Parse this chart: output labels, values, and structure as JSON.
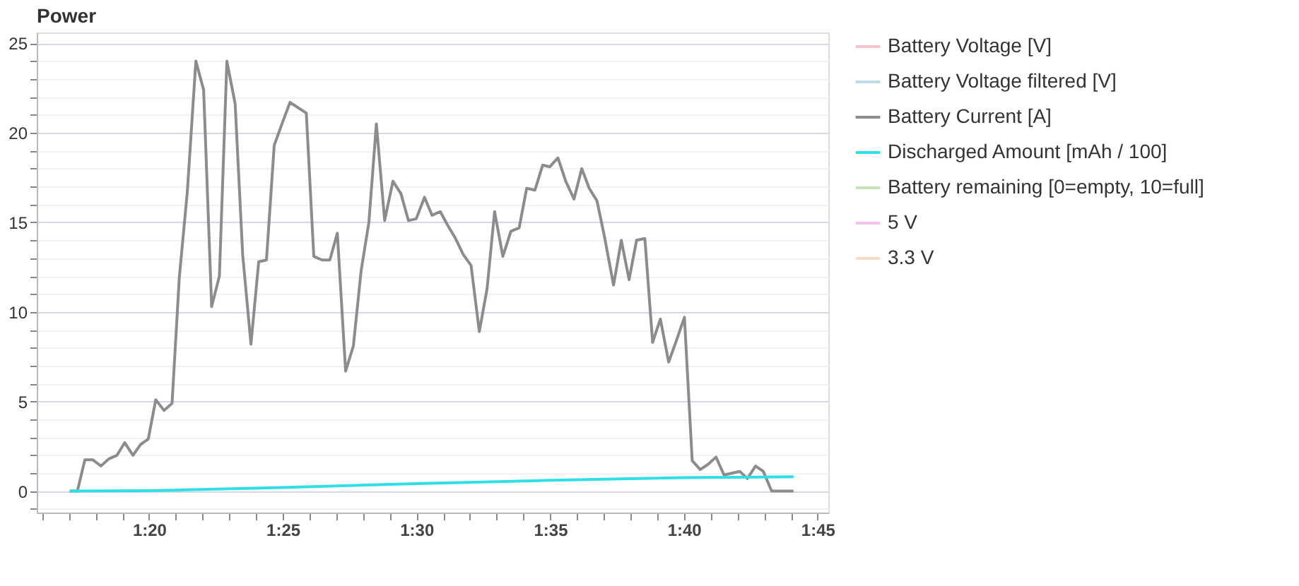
{
  "chart_data": {
    "type": "line",
    "title": "Power",
    "xlim": [
      75.8,
      105.4
    ],
    "xticks": [
      {
        "value": 76,
        "label": null
      },
      {
        "value": 77,
        "label": null
      },
      {
        "value": 78,
        "label": null
      },
      {
        "value": 79,
        "label": null
      },
      {
        "value": 80,
        "label": "1:20"
      },
      {
        "value": 81,
        "label": null
      },
      {
        "value": 82,
        "label": null
      },
      {
        "value": 83,
        "label": null
      },
      {
        "value": 84,
        "label": null
      },
      {
        "value": 85,
        "label": "1:25"
      },
      {
        "value": 86,
        "label": null
      },
      {
        "value": 87,
        "label": null
      },
      {
        "value": 88,
        "label": null
      },
      {
        "value": 89,
        "label": null
      },
      {
        "value": 90,
        "label": "1:30"
      },
      {
        "value": 91,
        "label": null
      },
      {
        "value": 92,
        "label": null
      },
      {
        "value": 93,
        "label": null
      },
      {
        "value": 94,
        "label": null
      },
      {
        "value": 95,
        "label": "1:35"
      },
      {
        "value": 96,
        "label": null
      },
      {
        "value": 97,
        "label": null
      },
      {
        "value": 98,
        "label": null
      },
      {
        "value": 99,
        "label": null
      },
      {
        "value": 100,
        "label": "1:40"
      },
      {
        "value": 101,
        "label": null
      },
      {
        "value": 102,
        "label": null
      },
      {
        "value": 103,
        "label": null
      },
      {
        "value": 104,
        "label": null
      },
      {
        "value": 105,
        "label": "1:45"
      }
    ],
    "ylim": [
      -1.2,
      25.6
    ],
    "yticks": [
      {
        "value": -1,
        "label": null
      },
      0,
      {
        "value": 1,
        "label": null
      },
      {
        "value": 2,
        "label": null
      },
      {
        "value": 3,
        "label": null
      },
      {
        "value": 4,
        "label": null
      },
      5,
      {
        "value": 6,
        "label": null
      },
      {
        "value": 7,
        "label": null
      },
      {
        "value": 8,
        "label": null
      },
      {
        "value": 9,
        "label": null
      },
      10,
      {
        "value": 11,
        "label": null
      },
      {
        "value": 12,
        "label": null
      },
      {
        "value": 13,
        "label": null
      },
      {
        "value": 14,
        "label": null
      },
      15,
      {
        "value": 16,
        "label": null
      },
      {
        "value": 17,
        "label": null
      },
      {
        "value": 18,
        "label": null
      },
      {
        "value": 19,
        "label": null
      },
      20,
      {
        "value": 21,
        "label": null
      },
      {
        "value": 22,
        "label": null
      },
      {
        "value": 23,
        "label": null
      },
      {
        "value": 24,
        "label": null
      },
      25
    ],
    "grid": "y",
    "legend": "right",
    "marker": "none",
    "line_style": "solid",
    "series": [
      {
        "name": "Battery Voltage [V]",
        "color": "#f4c6c9"
      },
      {
        "name": "Battery Voltage filtered [V]",
        "color": "#bcdde8"
      },
      {
        "name": "Battery Current [A]",
        "color": "#8c8c8c",
        "x": [
          77.03,
          77.32,
          77.6,
          77.89,
          78.2,
          78.5,
          78.8,
          79.09,
          79.4,
          79.68,
          79.97,
          80.25,
          80.56,
          80.86,
          81.13,
          81.43,
          81.75,
          82.04,
          82.34,
          82.63,
          82.91,
          83.22,
          83.5,
          83.81,
          84.1,
          84.39,
          84.68,
          84.97,
          85.27,
          85.88,
          86.16,
          86.47,
          86.76,
          87.04,
          87.35,
          87.64,
          87.93,
          88.22,
          88.5,
          88.81,
          89.12,
          89.42,
          89.7,
          89.99,
          90.3,
          90.58,
          90.89,
          91.18,
          91.46,
          91.75,
          92.04,
          92.35,
          92.64,
          92.92,
          93.23,
          93.53,
          93.84,
          94.12,
          94.43,
          94.72,
          94.98,
          95.29,
          95.58,
          95.89,
          96.18,
          96.46,
          96.75,
          97.03,
          97.37,
          97.66,
          97.95,
          98.23,
          98.54,
          98.83,
          99.12,
          99.43,
          99.72,
          100.02,
          100.31,
          100.61,
          100.91,
          101.2,
          101.5,
          101.79,
          102.09,
          102.37,
          102.68,
          102.97,
          103.28,
          104.1
        ],
        "values": [
          0,
          0,
          1.75,
          1.75,
          1.4,
          1.8,
          2.0,
          2.7,
          2.0,
          2.6,
          2.9,
          5.1,
          4.5,
          4.9,
          11.9,
          16.7,
          24.0,
          22.4,
          10.3,
          12.0,
          24.0,
          21.6,
          13.2,
          8.2,
          12.8,
          12.9,
          19.3,
          20.5,
          21.7,
          21.1,
          13.1,
          12.9,
          12.9,
          14.4,
          6.7,
          8.1,
          12.3,
          15.0,
          20.5,
          15.1,
          17.3,
          16.6,
          15.1,
          15.2,
          16.4,
          15.4,
          15.6,
          14.8,
          14.1,
          13.2,
          12.6,
          8.9,
          11.3,
          15.6,
          13.1,
          14.5,
          14.7,
          16.9,
          16.8,
          18.2,
          18.1,
          18.6,
          17.3,
          16.3,
          18.0,
          16.9,
          16.2,
          14.2,
          11.5,
          14.0,
          11.8,
          14.0,
          14.1,
          8.3,
          9.6,
          7.2,
          8.4,
          9.7,
          1.7,
          1.2,
          1.5,
          1.9,
          0.9,
          1.0,
          1.1,
          0.7,
          1.4,
          1.1,
          0,
          0
        ]
      },
      {
        "name": "Discharged Amount [mAh / 100]",
        "color": "#2ee0e6",
        "x": [
          77.03,
          80,
          85,
          90,
          95,
          100,
          104.1
        ],
        "values": [
          0,
          0.02,
          0.2,
          0.42,
          0.6,
          0.75,
          0.8
        ]
      },
      {
        "name": "Battery remaining [0=empty, 10=full]",
        "color": "#c4e3b8"
      },
      {
        "name": "5 V",
        "color": "#f5c2f0"
      },
      {
        "name": "3.3 V",
        "color": "#f7dcc4"
      }
    ]
  }
}
